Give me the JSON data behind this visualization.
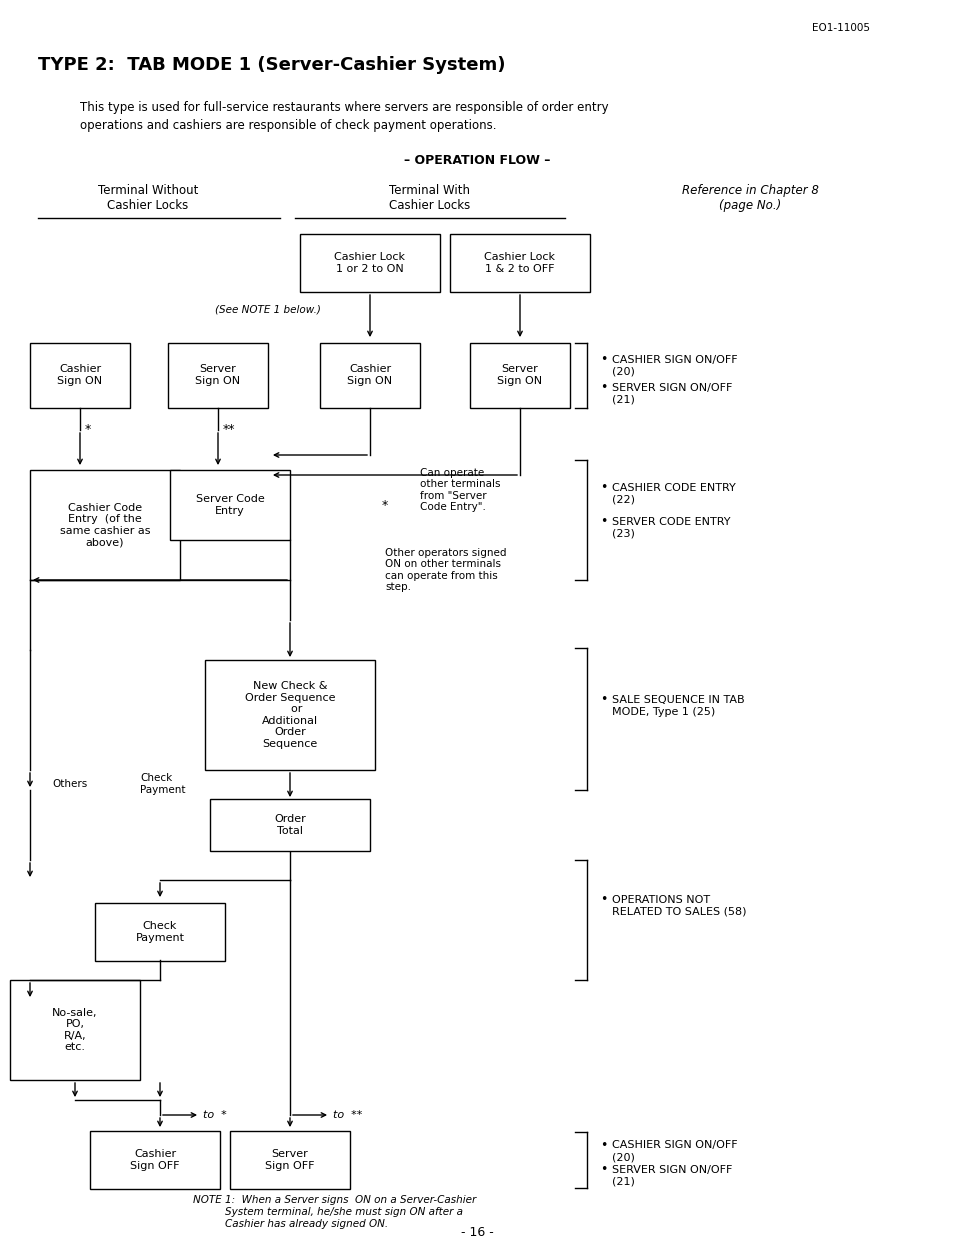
{
  "doc_ref": "EO1-11005",
  "title": "TYPE 2:  TAB MODE 1 (Server-Cashier System)",
  "desc1": "This type is used for full-service restaurants where servers are responsible of order entry",
  "desc2": "operations and cashiers are responsible of check payment operations.",
  "flow_title": "– OPERATION FLOW –",
  "page_number": "- 16 -",
  "bg": "#ffffff"
}
